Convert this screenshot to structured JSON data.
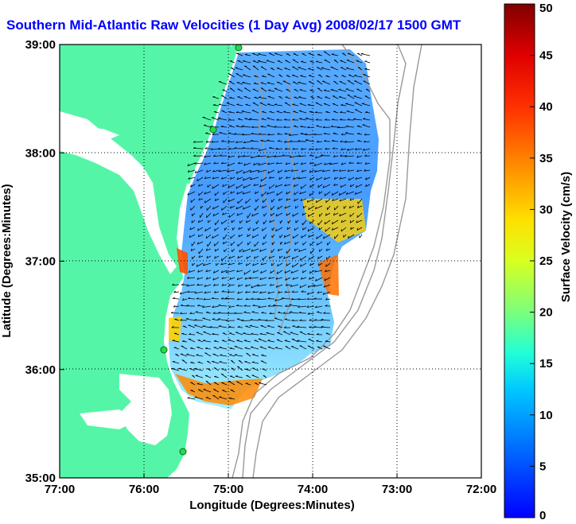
{
  "title": "Southern Mid-Atlantic Raw Velocities (1 Day Avg) 2008/02/17 1500 GMT",
  "map": {
    "x_ticks": [
      "77:00",
      "76:00",
      "75:00",
      "74:00",
      "73:00",
      "72:00"
    ],
    "y_ticks": [
      "39:00",
      "38:00",
      "37:00",
      "36:00",
      "35:00"
    ],
    "xlabel": "Longitude (Degrees:Minutes)",
    "ylabel": "Latitude (Degrees:Minutes)",
    "lon_range": [
      -77,
      -72
    ],
    "lat_range": [
      35,
      39
    ],
    "grid": true,
    "land_color": "#55f5a8",
    "water_color": "#ffffff",
    "bathymetry_color": "#999999"
  },
  "colorbar": {
    "label": "Surface Velocity (cm/s)",
    "ticks": [
      "50",
      "45",
      "40",
      "35",
      "30",
      "25",
      "20",
      "15",
      "10",
      "5",
      "0"
    ],
    "range": [
      0,
      50
    ],
    "colormap": "jet"
  }
}
